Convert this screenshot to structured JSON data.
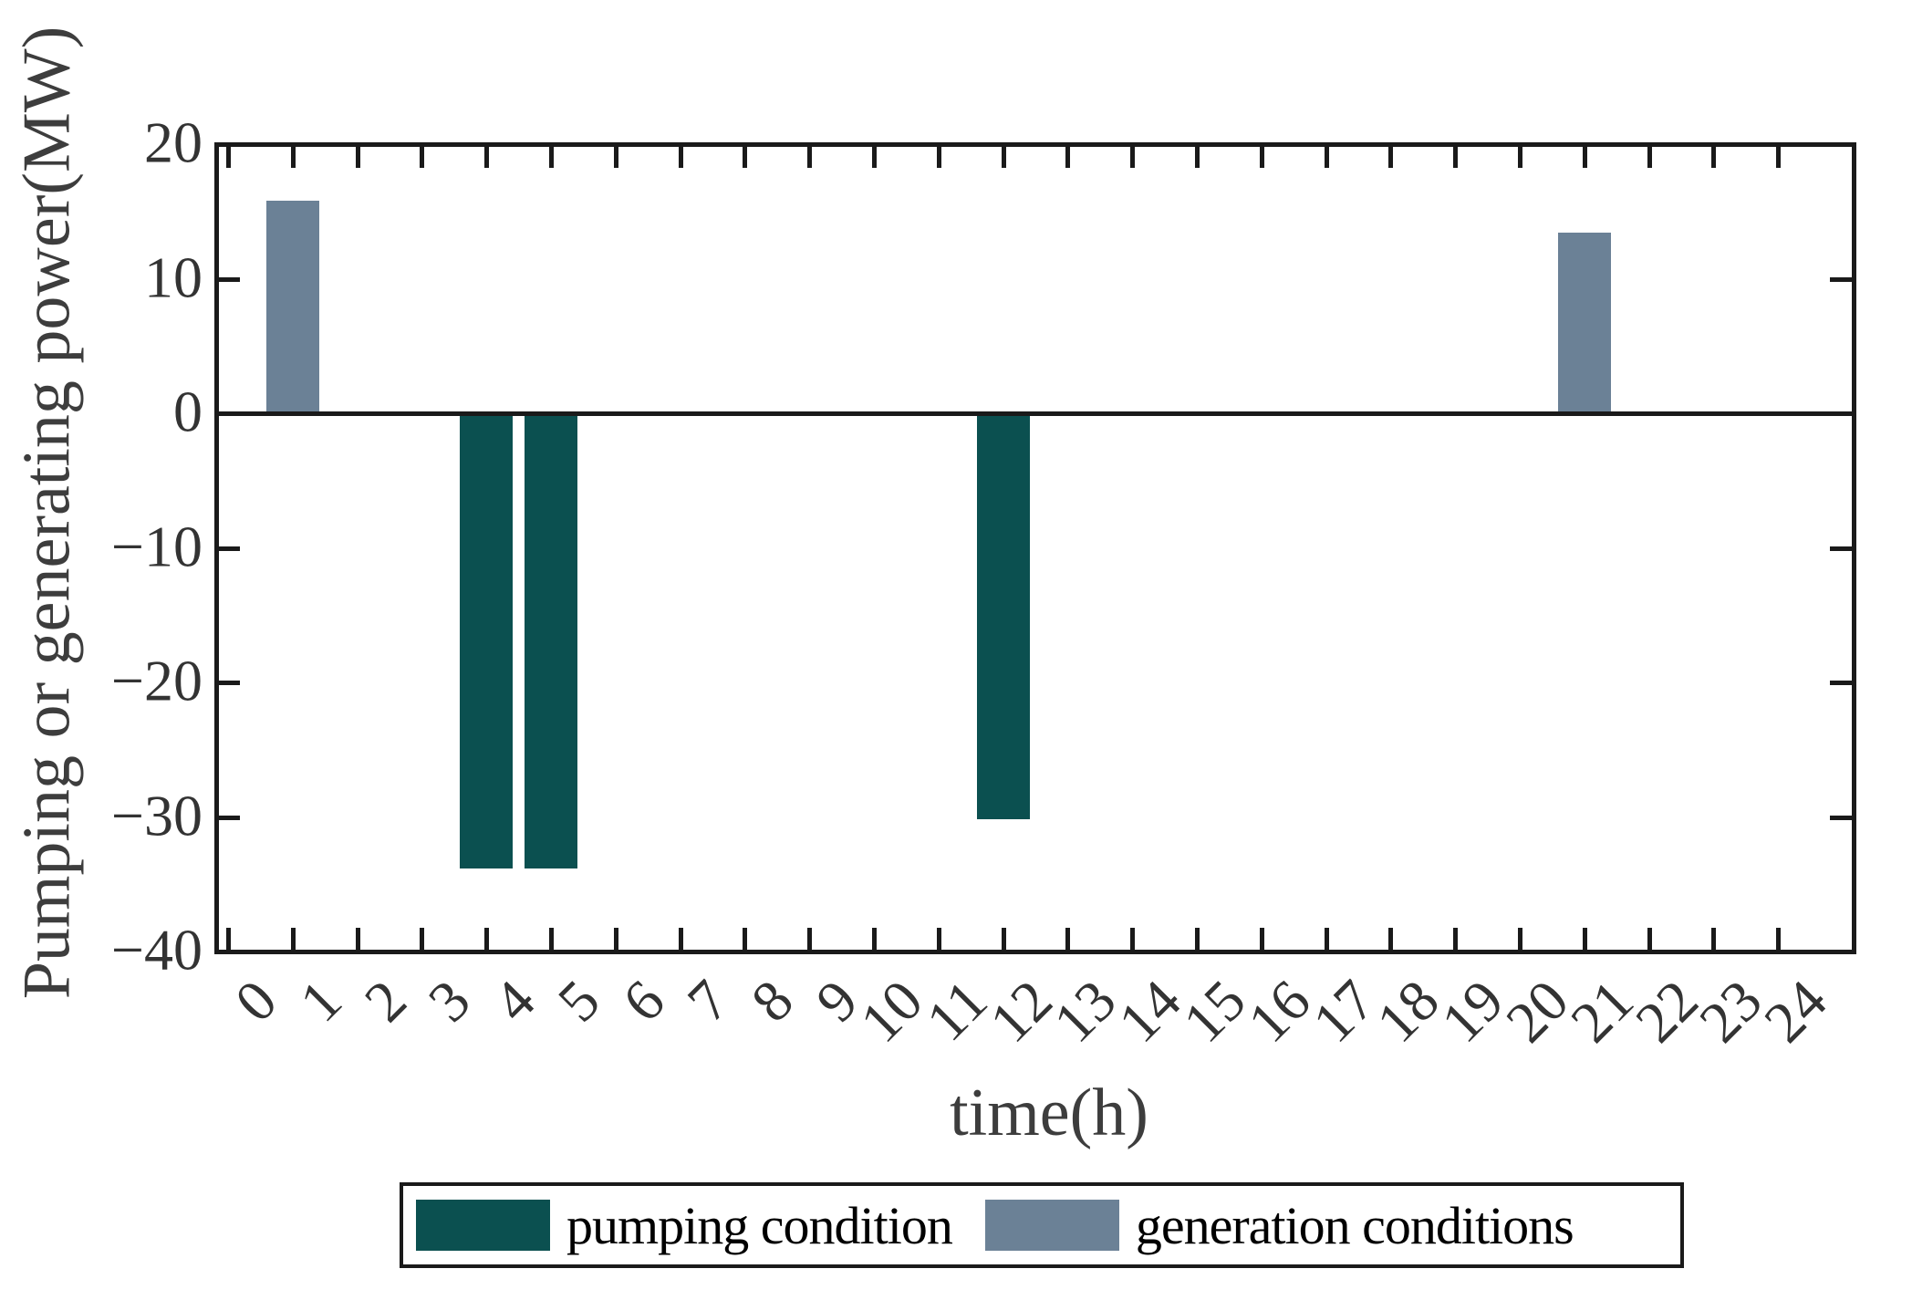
{
  "chart_data": {
    "type": "bar",
    "title": "",
    "xlabel": "time(h)",
    "ylabel": "Pumping or generating power(MW)",
    "xlim": [
      -0.2,
      25.2
    ],
    "ylim": [
      -40,
      20
    ],
    "grid": false,
    "zero_line": true,
    "bar_width_x": 0.82,
    "x_tick_values": [
      0,
      1,
      2,
      3,
      4,
      5,
      6,
      7,
      8,
      9,
      10,
      11,
      12,
      13,
      14,
      15,
      16,
      17,
      18,
      19,
      20,
      21,
      22,
      23,
      24
    ],
    "x_tick_labels": [
      "0",
      "1",
      "2",
      "3",
      "4",
      "5",
      "6",
      "7",
      "8",
      "9",
      "10",
      "11",
      "12",
      "13",
      "14",
      "15",
      "16",
      "17",
      "18",
      "19",
      "20",
      "21",
      "22",
      "23",
      "24"
    ],
    "y_tick_values": [
      20,
      10,
      0,
      -10,
      -20,
      -30,
      -40
    ],
    "y_tick_labels": [
      "20",
      "10",
      "0",
      "−10",
      "−20",
      "−30",
      "−40"
    ],
    "series": [
      {
        "name": "pumping condition",
        "color": "#0B5050",
        "points": [
          {
            "x": 4,
            "y": -33.8
          },
          {
            "x": 5,
            "y": -33.8
          },
          {
            "x": 12,
            "y": -30.2
          }
        ]
      },
      {
        "name": "generation conditions",
        "color": "#6B8196",
        "points": [
          {
            "x": 1,
            "y": 15.8
          },
          {
            "x": 21,
            "y": 13.4
          }
        ]
      }
    ],
    "legend": {
      "position": "bottom-outside",
      "entries": [
        "pumping condition",
        "generation conditions"
      ]
    }
  },
  "colors": {
    "background": "#ffffff",
    "axis": "#1a1a1a",
    "tick_label": "#333333",
    "axis_label": "#3d3d3d",
    "legend_text": "#000000",
    "pumping_bar": "#0B5050",
    "generation_bar": "#6B8196"
  }
}
